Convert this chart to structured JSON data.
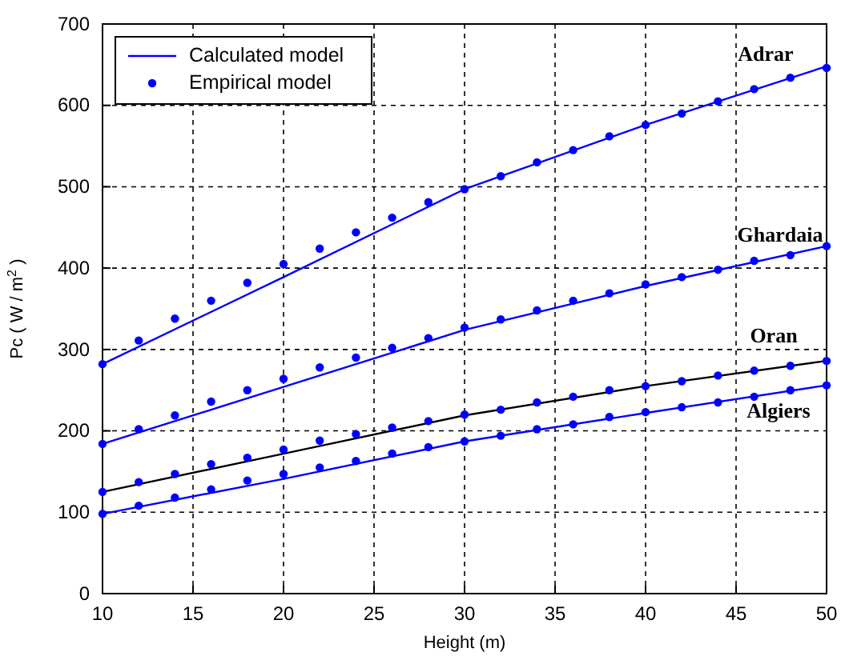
{
  "chart_data": {
    "type": "line",
    "xlabel": "Height (m)",
    "ylabel": "Pc ( W / m$^{2}$ )",
    "xlim": [
      10,
      50
    ],
    "xticks": [
      10,
      15,
      20,
      25,
      30,
      35,
      40,
      45,
      50
    ],
    "ylim": [
      0,
      700
    ],
    "yticks": [
      0,
      100,
      200,
      300,
      400,
      500,
      600,
      700
    ],
    "grid": true,
    "legend": "top left",
    "line_style": "solid",
    "series": [
      {
        "name": "Calculated model",
        "color": "#0000ff",
        "x": [
          10,
          20,
          30,
          40,
          50
        ],
        "values": [
          282,
          389,
          497,
          576,
          648
        ]
      },
      {
        "color": "#0000ff",
        "x": [
          10,
          20,
          30,
          40,
          50
        ],
        "values": [
          184,
          254,
          324,
          378,
          427
        ]
      },
      {
        "color": "#000000",
        "x": [
          10,
          20,
          30,
          40,
          50
        ],
        "values": [
          125,
          172,
          219,
          255,
          286
        ]
      },
      {
        "color": "#0000ff",
        "x": [
          10,
          20,
          30,
          40,
          50
        ],
        "values": [
          98,
          141,
          187,
          222,
          256
        ]
      },
      {
        "type": "scatter",
        "name": "Empirical model",
        "marker": "circle",
        "color": "#0000ff",
        "x": [
          10,
          12,
          14,
          16,
          18,
          20,
          22,
          24,
          26,
          28,
          30,
          32,
          34,
          36,
          38,
          40,
          42,
          44,
          46,
          48,
          50
        ],
        "values": [
          282,
          311,
          338,
          360,
          382,
          405,
          424,
          444,
          462,
          481,
          497,
          513,
          530,
          545,
          562,
          576,
          590,
          605,
          620,
          634,
          646
        ]
      },
      {
        "type": "scatter",
        "marker": "circle",
        "color": "#0000ff",
        "x": [
          10,
          12,
          14,
          16,
          18,
          20,
          22,
          24,
          26,
          28,
          30,
          32,
          34,
          36,
          38,
          40,
          42,
          44,
          46,
          48,
          50
        ],
        "values": [
          184,
          202,
          219,
          236,
          250,
          264,
          278,
          290,
          302,
          314,
          327,
          337,
          348,
          360,
          369,
          380,
          389,
          398,
          409,
          416,
          427
        ]
      },
      {
        "type": "scatter",
        "marker": "circle",
        "color": "#0000ff",
        "x": [
          10,
          12,
          14,
          16,
          18,
          20,
          22,
          24,
          26,
          28,
          30,
          32,
          34,
          36,
          38,
          40,
          42,
          44,
          46,
          48,
          50
        ],
        "values": [
          125,
          137,
          147,
          159,
          167,
          177,
          188,
          196,
          204,
          212,
          220,
          226,
          235,
          242,
          250,
          255,
          261,
          268,
          274,
          280,
          286
        ]
      },
      {
        "type": "scatter",
        "marker": "circle",
        "color": "#0000ff",
        "x": [
          10,
          12,
          14,
          16,
          18,
          20,
          22,
          24,
          26,
          28,
          30,
          32,
          34,
          36,
          38,
          40,
          42,
          44,
          46,
          48,
          50
        ],
        "values": [
          98,
          108,
          118,
          128,
          139,
          147,
          155,
          163,
          172,
          180,
          187,
          194,
          202,
          208,
          217,
          223,
          229,
          235,
          242,
          250,
          256
        ]
      }
    ],
    "annotations": [
      "Adrar",
      "Ghardaia",
      "Oran",
      "Algiers"
    ]
  }
}
